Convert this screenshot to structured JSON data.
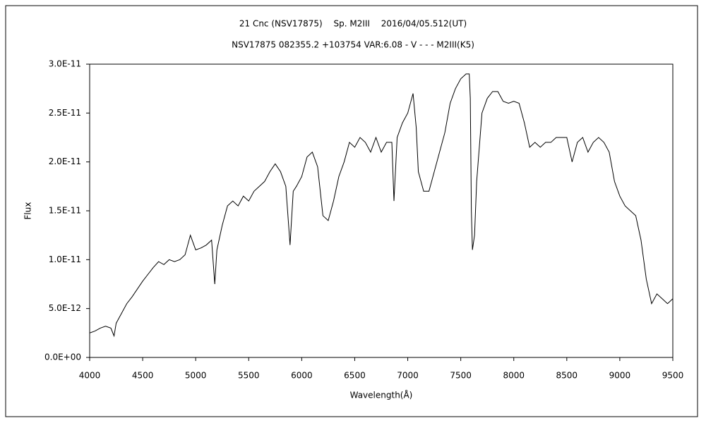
{
  "chart_data": {
    "type": "line",
    "title": "21 Cnc (NSV17875)　 Sp. M2III　 2016/04/05.512(UT)",
    "subtitle": "NSV17875 082355.2 +103754 VAR:6.08 - V - - - M2III(K5)",
    "x_label": "Wavelength(Å)",
    "y_label": "Flux",
    "x": [
      4000,
      4050,
      4100,
      4150,
      4200,
      4230,
      4250,
      4300,
      4350,
      4400,
      4450,
      4500,
      4550,
      4600,
      4650,
      4700,
      4750,
      4800,
      4850,
      4900,
      4950,
      5000,
      5050,
      5100,
      5150,
      5180,
      5200,
      5250,
      5300,
      5350,
      5400,
      5450,
      5500,
      5550,
      5600,
      5650,
      5700,
      5750,
      5800,
      5850,
      5890,
      5920,
      5950,
      6000,
      6050,
      6100,
      6150,
      6200,
      6250,
      6300,
      6350,
      6400,
      6450,
      6500,
      6550,
      6600,
      6650,
      6700,
      6750,
      6800,
      6850,
      6870,
      6900,
      6950,
      7000,
      7050,
      7080,
      7100,
      7150,
      7200,
      7250,
      7300,
      7350,
      7400,
      7450,
      7500,
      7550,
      7580,
      7590,
      7600,
      7610,
      7630,
      7650,
      7700,
      7750,
      7800,
      7850,
      7900,
      7950,
      8000,
      8050,
      8100,
      8150,
      8200,
      8250,
      8300,
      8350,
      8400,
      8450,
      8500,
      8550,
      8600,
      8650,
      8700,
      8750,
      8800,
      8850,
      8900,
      8950,
      9000,
      9050,
      9100,
      9150,
      9200,
      9250,
      9300,
      9350,
      9400,
      9450,
      9500
    ],
    "series": [
      {
        "name": "Flux",
        "color": "#000000",
        "values": [
          2.5e-12,
          2.7e-12,
          3e-12,
          3.2e-12,
          3e-12,
          2.2e-12,
          3.5e-12,
          4.5e-12,
          5.5e-12,
          6.2e-12,
          7e-12,
          7.8e-12,
          8.5e-12,
          9.2e-12,
          9.8e-12,
          9.5e-12,
          1e-11,
          9.8e-12,
          1e-11,
          1.05e-11,
          1.25e-11,
          1.1e-11,
          1.12e-11,
          1.15e-11,
          1.2e-11,
          7.5e-12,
          1.1e-11,
          1.35e-11,
          1.55e-11,
          1.6e-11,
          1.55e-11,
          1.65e-11,
          1.6e-11,
          1.7e-11,
          1.75e-11,
          1.8e-11,
          1.9e-11,
          1.98e-11,
          1.9e-11,
          1.75e-11,
          1.15e-11,
          1.7e-11,
          1.75e-11,
          1.85e-11,
          2.05e-11,
          2.1e-11,
          1.95e-11,
          1.45e-11,
          1.4e-11,
          1.6e-11,
          1.85e-11,
          2e-11,
          2.2e-11,
          2.15e-11,
          2.25e-11,
          2.2e-11,
          2.1e-11,
          2.25e-11,
          2.1e-11,
          2.2e-11,
          2.2e-11,
          1.6e-11,
          2.25e-11,
          2.4e-11,
          2.5e-11,
          2.7e-11,
          2.35e-11,
          1.9e-11,
          1.7e-11,
          1.7e-11,
          1.9e-11,
          2.1e-11,
          2.3e-11,
          2.6e-11,
          2.75e-11,
          2.85e-11,
          2.9e-11,
          2.9e-11,
          2.65e-11,
          1.5e-11,
          1.1e-11,
          1.25e-11,
          1.8e-11,
          2.5e-11,
          2.65e-11,
          2.72e-11,
          2.72e-11,
          2.62e-11,
          2.6e-11,
          2.62e-11,
          2.6e-11,
          2.4e-11,
          2.15e-11,
          2.2e-11,
          2.15e-11,
          2.2e-11,
          2.2e-11,
          2.25e-11,
          2.25e-11,
          2.25e-11,
          2e-11,
          2.2e-11,
          2.25e-11,
          2.1e-11,
          2.2e-11,
          2.25e-11,
          2.2e-11,
          2.1e-11,
          1.8e-11,
          1.65e-11,
          1.55e-11,
          1.5e-11,
          1.45e-11,
          1.2e-11,
          8e-12,
          5.5e-12,
          6.5e-12,
          6e-12,
          5.5e-12,
          6e-12
        ]
      }
    ],
    "xlim": [
      4000,
      9500
    ],
    "xticks": [
      4000,
      4500,
      5000,
      5500,
      6000,
      6500,
      7000,
      7500,
      8000,
      8500,
      9000,
      9500
    ],
    "ylim": [
      0,
      3e-11
    ],
    "yticks": [
      {
        "value": 0,
        "label": "0.0E+00"
      },
      {
        "value": 5e-12,
        "label": "5.0E-12"
      },
      {
        "value": 1e-11,
        "label": "1.0E-11"
      },
      {
        "value": 1.5e-11,
        "label": "1.5E-11"
      },
      {
        "value": 2e-11,
        "label": "2.0E-11"
      },
      {
        "value": 2.5e-11,
        "label": "2.5E-11"
      },
      {
        "value": 3e-11,
        "label": "3.0E-11"
      }
    ],
    "grid": false
  }
}
